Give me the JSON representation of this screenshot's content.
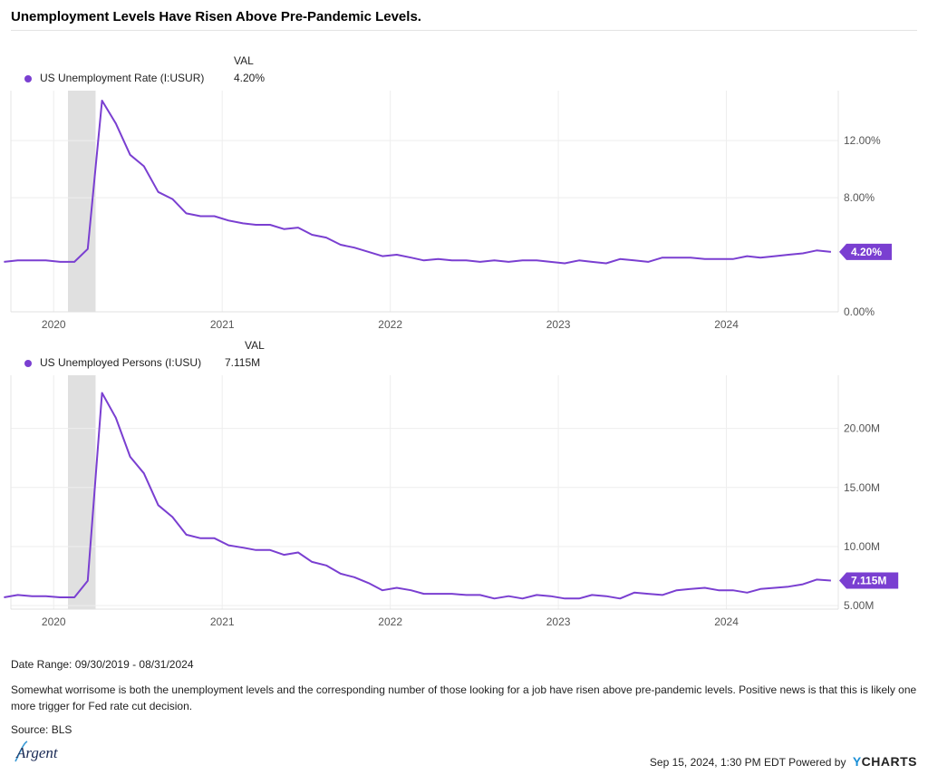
{
  "title": "Unemployment Levels Have Risen Above Pre-Pandemic Levels.",
  "colors": {
    "series": "#7a3fd1",
    "recession": "#e0e0e0",
    "grid": "#eeeeee"
  },
  "x_ticks": [
    "2020",
    "2021",
    "2022",
    "2023",
    "2024"
  ],
  "chart_data": [
    {
      "type": "line",
      "legend_header": "VAL",
      "series": [
        {
          "name": "US Unemployment Rate (I:USUR)",
          "last_value_label": "4.20%"
        }
      ],
      "y_ticks": [
        "12.00%",
        "8.00%",
        "0.00%"
      ],
      "y_tick_values": [
        12,
        8,
        0
      ],
      "ylim": [
        0,
        15.5
      ],
      "xlim": [
        "2019-09-30",
        "2024-08-31"
      ],
      "recession_band": [
        "2020-02-01",
        "2020-04-01"
      ],
      "x": [
        "2019-09",
        "2019-10",
        "2019-11",
        "2019-12",
        "2020-01",
        "2020-02",
        "2020-03",
        "2020-04",
        "2020-05",
        "2020-06",
        "2020-07",
        "2020-08",
        "2020-09",
        "2020-10",
        "2020-11",
        "2020-12",
        "2021-01",
        "2021-02",
        "2021-03",
        "2021-04",
        "2021-05",
        "2021-06",
        "2021-07",
        "2021-08",
        "2021-09",
        "2021-10",
        "2021-11",
        "2021-12",
        "2022-01",
        "2022-02",
        "2022-03",
        "2022-04",
        "2022-05",
        "2022-06",
        "2022-07",
        "2022-08",
        "2022-09",
        "2022-10",
        "2022-11",
        "2022-12",
        "2023-01",
        "2023-02",
        "2023-03",
        "2023-04",
        "2023-05",
        "2023-06",
        "2023-07",
        "2023-08",
        "2023-09",
        "2023-10",
        "2023-11",
        "2023-12",
        "2024-01",
        "2024-02",
        "2024-03",
        "2024-04",
        "2024-05",
        "2024-06",
        "2024-07",
        "2024-08"
      ],
      "values": [
        3.5,
        3.6,
        3.6,
        3.6,
        3.5,
        3.5,
        4.4,
        14.8,
        13.2,
        11.0,
        10.2,
        8.4,
        7.9,
        6.9,
        6.7,
        6.7,
        6.4,
        6.2,
        6.1,
        6.1,
        5.8,
        5.9,
        5.4,
        5.2,
        4.7,
        4.5,
        4.2,
        3.9,
        4.0,
        3.8,
        3.6,
        3.7,
        3.6,
        3.6,
        3.5,
        3.6,
        3.5,
        3.6,
        3.6,
        3.5,
        3.4,
        3.6,
        3.5,
        3.4,
        3.7,
        3.6,
        3.5,
        3.8,
        3.8,
        3.8,
        3.7,
        3.7,
        3.7,
        3.9,
        3.8,
        3.9,
        4.0,
        4.1,
        4.3,
        4.2
      ]
    },
    {
      "type": "line",
      "legend_header": "VAL",
      "series": [
        {
          "name": "US Unemployed Persons (I:USU)",
          "last_value_label": "7.115M"
        }
      ],
      "y_ticks": [
        "20.00M",
        "15.00M",
        "10.00M",
        "5.00M"
      ],
      "y_tick_values": [
        20,
        15,
        10,
        5
      ],
      "ylim": [
        4.7,
        24.5
      ],
      "xlim": [
        "2019-09-30",
        "2024-08-31"
      ],
      "recession_band": [
        "2020-02-01",
        "2020-04-01"
      ],
      "x": [
        "2019-09",
        "2019-10",
        "2019-11",
        "2019-12",
        "2020-01",
        "2020-02",
        "2020-03",
        "2020-04",
        "2020-05",
        "2020-06",
        "2020-07",
        "2020-08",
        "2020-09",
        "2020-10",
        "2020-11",
        "2020-12",
        "2021-01",
        "2021-02",
        "2021-03",
        "2021-04",
        "2021-05",
        "2021-06",
        "2021-07",
        "2021-08",
        "2021-09",
        "2021-10",
        "2021-11",
        "2021-12",
        "2022-01",
        "2022-02",
        "2022-03",
        "2022-04",
        "2022-05",
        "2022-06",
        "2022-07",
        "2022-08",
        "2022-09",
        "2022-10",
        "2022-11",
        "2022-12",
        "2023-01",
        "2023-02",
        "2023-03",
        "2023-04",
        "2023-05",
        "2023-06",
        "2023-07",
        "2023-08",
        "2023-09",
        "2023-10",
        "2023-11",
        "2023-12",
        "2024-01",
        "2024-02",
        "2024-03",
        "2024-04",
        "2024-05",
        "2024-06",
        "2024-07",
        "2024-08"
      ],
      "values": [
        5.7,
        5.9,
        5.8,
        5.8,
        5.7,
        5.7,
        7.1,
        23.0,
        20.9,
        17.6,
        16.2,
        13.5,
        12.5,
        11.0,
        10.7,
        10.7,
        10.1,
        9.9,
        9.7,
        9.7,
        9.3,
        9.5,
        8.7,
        8.4,
        7.7,
        7.4,
        6.9,
        6.3,
        6.5,
        6.3,
        6.0,
        6.0,
        6.0,
        5.9,
        5.9,
        5.6,
        5.8,
        5.6,
        5.9,
        5.8,
        5.6,
        5.6,
        5.9,
        5.8,
        5.6,
        6.1,
        6.0,
        5.9,
        6.3,
        6.4,
        6.5,
        6.3,
        6.3,
        6.1,
        6.4,
        6.5,
        6.6,
        6.8,
        7.2,
        7.115
      ]
    }
  ],
  "date_range": "Date Range: 09/30/2019 - 08/31/2024",
  "commentary": "Somewhat worrisome is both the unemployment levels and the corresponding number of those looking for a job have risen above pre-pandemic levels. Positive news is that this is likely one more trigger for Fed rate cut decision.",
  "source": "Source: BLS",
  "logo_text": "Argent",
  "footer": {
    "timestamp": "Sep 15, 2024, 1:30 PM EDT Powered by",
    "brand_y": "Y",
    "brand_rest": "CHARTS"
  }
}
